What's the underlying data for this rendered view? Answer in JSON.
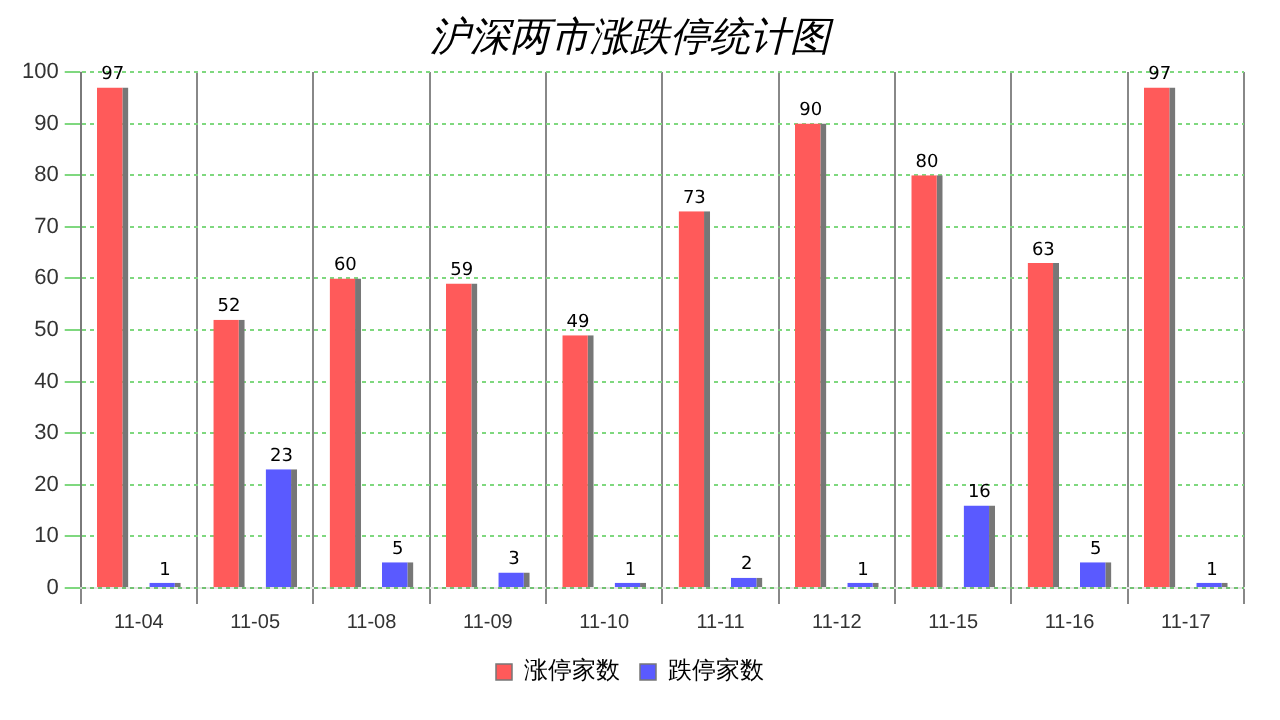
{
  "chart_data": {
    "type": "bar",
    "title": "沪深两市涨跌停统计图",
    "categories": [
      "11-04",
      "11-05",
      "11-08",
      "11-09",
      "11-10",
      "11-11",
      "11-12",
      "11-15",
      "11-16",
      "11-17"
    ],
    "series": [
      {
        "name": "涨停家数",
        "color": "#ff5a5a",
        "values": [
          97,
          52,
          60,
          59,
          49,
          73,
          90,
          80,
          63,
          97
        ]
      },
      {
        "name": "跌停家数",
        "color": "#5a5aff",
        "values": [
          1,
          23,
          5,
          3,
          1,
          2,
          1,
          16,
          5,
          1
        ]
      }
    ],
    "ylim": [
      0,
      100
    ],
    "yticks": [
      0,
      10,
      20,
      30,
      40,
      50,
      60,
      70,
      80,
      90,
      100
    ],
    "grid": true,
    "legend": "bottom",
    "data_labels": true
  }
}
